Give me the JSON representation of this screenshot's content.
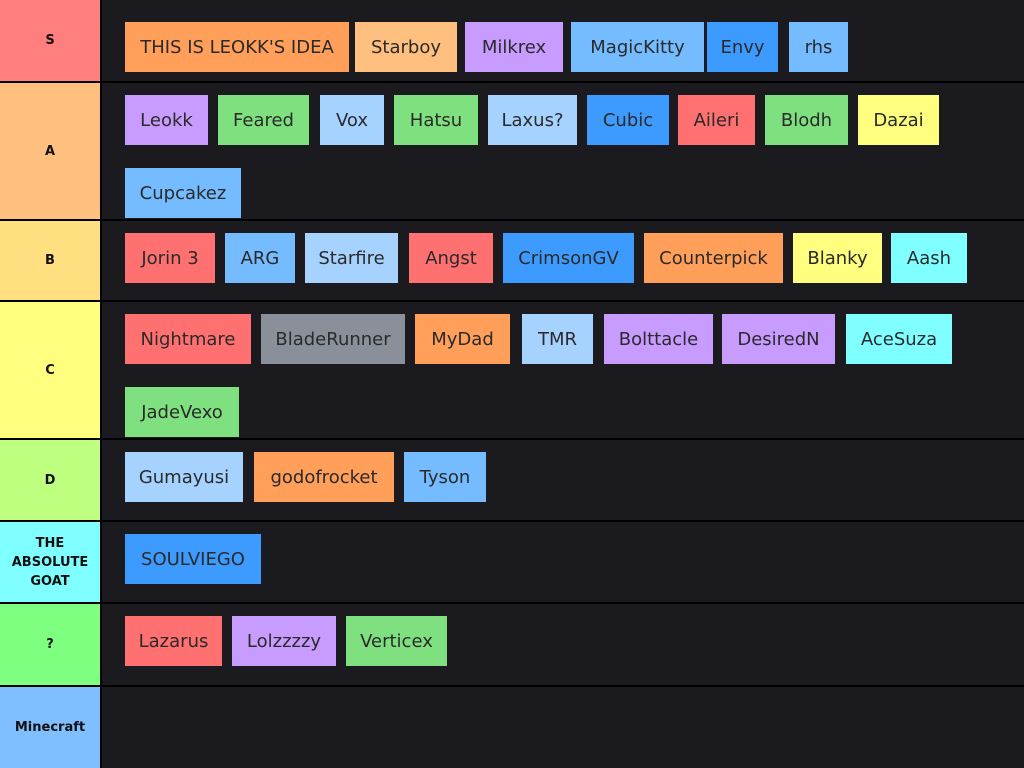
{
  "tiers": [
    {
      "label": "S",
      "color": "#ff7f7f",
      "items": [
        {
          "text": "THIS IS LEOKK'S IDEA",
          "color": "#ff9f5a"
        },
        {
          "text": "Starboy",
          "color": "#ffbf7f"
        },
        {
          "text": "Milkrex",
          "color": "#c89bff"
        },
        {
          "text": "MagicKitty",
          "color": "#74bcff"
        },
        {
          "text": "Envy",
          "color": "#3d9bff"
        },
        {
          "text": "rhs",
          "color": "#74bcff"
        }
      ]
    },
    {
      "label": "A",
      "color": "#ffbf7f",
      "items": [
        {
          "text": "Leokk",
          "color": "#c89bff"
        },
        {
          "text": "Feared",
          "color": "#7fe07f"
        },
        {
          "text": "Vox",
          "color": "#a6d2ff"
        },
        {
          "text": "Hatsu",
          "color": "#7fe07f"
        },
        {
          "text": "Laxus?",
          "color": "#a6d2ff"
        },
        {
          "text": "Cubic",
          "color": "#3d9bff"
        },
        {
          "text": "Aileri",
          "color": "#ff7070"
        },
        {
          "text": "Blodh",
          "color": "#7fe07f"
        },
        {
          "text": "Dazai",
          "color": "#ffff7f"
        },
        {
          "text": "Cupcakez",
          "color": "#74bcff"
        }
      ]
    },
    {
      "label": "B",
      "color": "#ffdf7f",
      "items": [
        {
          "text": "Jorin 3",
          "color": "#ff7070"
        },
        {
          "text": "ARG",
          "color": "#74bcff"
        },
        {
          "text": "Starfire",
          "color": "#a6d2ff"
        },
        {
          "text": "Angst",
          "color": "#ff7070"
        },
        {
          "text": "CrimsonGV",
          "color": "#3d9bff"
        },
        {
          "text": "Counterpick",
          "color": "#ff9f5a"
        },
        {
          "text": "Blanky",
          "color": "#ffff7f"
        },
        {
          "text": "Aash",
          "color": "#7fffff"
        }
      ]
    },
    {
      "label": "C",
      "color": "#ffff7f",
      "items": [
        {
          "text": "Nightmare",
          "color": "#ff7070"
        },
        {
          "text": "BladeRunner",
          "color": "#8a9099"
        },
        {
          "text": "MyDad",
          "color": "#ff9f5a"
        },
        {
          "text": "TMR",
          "color": "#a6d2ff"
        },
        {
          "text": "Bolttacle",
          "color": "#c89bff"
        },
        {
          "text": "DesiredN",
          "color": "#c89bff"
        },
        {
          "text": "AceSuza",
          "color": "#7fffff"
        },
        {
          "text": "JadeVexo",
          "color": "#7fe07f"
        }
      ]
    },
    {
      "label": "D",
      "color": "#bfff7f",
      "items": [
        {
          "text": "Gumayusi",
          "color": "#a6d2ff"
        },
        {
          "text": "godofrocket",
          "color": "#ff9f5a"
        },
        {
          "text": "Tyson",
          "color": "#74bcff"
        }
      ]
    },
    {
      "label": "THE ABSOLUTE GOAT",
      "color": "#7fffff",
      "items": [
        {
          "text": "SOULVIEGO",
          "color": "#3d9bff"
        }
      ]
    },
    {
      "label": "?",
      "color": "#7fff7f",
      "items": [
        {
          "text": "Lazarus",
          "color": "#ff7070"
        },
        {
          "text": "Lolzzzzy",
          "color": "#c89bff"
        },
        {
          "text": "Verticex",
          "color": "#7fe07f"
        }
      ]
    },
    {
      "label": "Minecraft",
      "color": "#7fbfff",
      "items": []
    }
  ]
}
